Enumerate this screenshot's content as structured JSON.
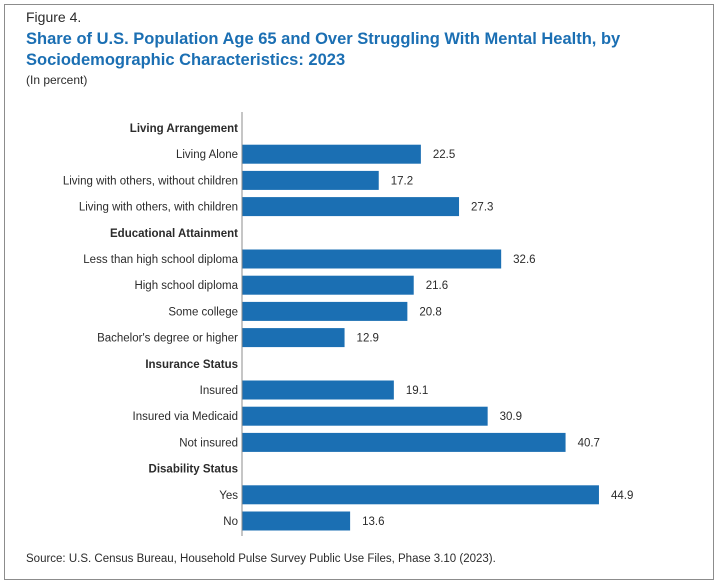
{
  "figure_label": "Figure 4.",
  "title": "Share of U.S. Population Age 65 and Over Struggling With Mental Health, by Sociodemographic Characteristics: 2023",
  "subtitle": "(In percent)",
  "source": "Source: U.S. Census Bureau, Household Pulse Survey Public Use Files, Phase 3.10 (2023).",
  "colors": {
    "bar": "#1b6fb3",
    "axis": "#8c8c8c",
    "text": "#2b2b2b"
  },
  "chart_data": {
    "type": "bar",
    "orientation": "horizontal",
    "title": "Share of U.S. Population Age 65 and Over Struggling With Mental Health, by Sociodemographic Characteristics: 2023",
    "unit": "(In percent)",
    "xlim": [
      0,
      50
    ],
    "grid": false,
    "legend": "none",
    "groups": [
      {
        "name": "Living Arrangement",
        "categories": [
          "Living Alone",
          "Living with others, without children",
          "Living with others, with children"
        ],
        "values": [
          22.5,
          17.2,
          27.3
        ]
      },
      {
        "name": "Educational Attainment",
        "categories": [
          "Less than high school diploma",
          "High school diploma",
          "Some college",
          "Bachelor's degree or higher"
        ],
        "values": [
          32.6,
          21.6,
          20.8,
          12.9
        ]
      },
      {
        "name": "Insurance Status",
        "categories": [
          "Insured",
          "Insured via Medicaid",
          "Not insured"
        ],
        "values": [
          19.1,
          30.9,
          40.7
        ]
      },
      {
        "name": "Disability Status",
        "categories": [
          "Yes",
          "No"
        ],
        "values": [
          44.9,
          13.6
        ]
      }
    ]
  }
}
